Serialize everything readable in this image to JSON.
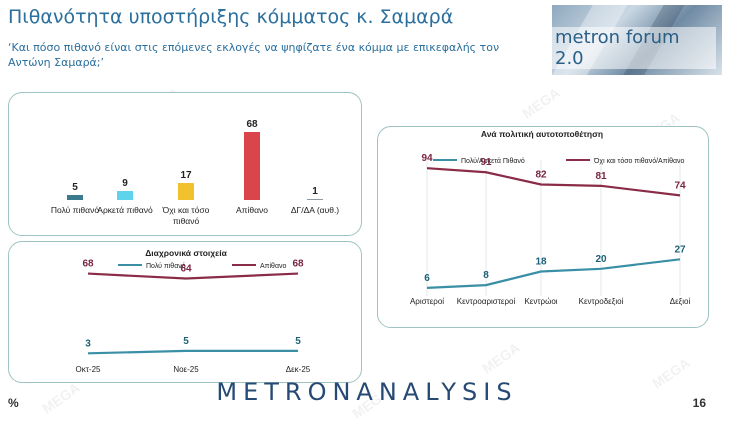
{
  "header": {
    "title": "Πιθανότητα υποστήριξης κόμματος κ. Σαμαρά",
    "subtitle": "‘Και πόσο πιθανό είναι στις επόμενες εκλογές να ψηφίζατε ένα κόμμα με επικεφαλής τον Αντώνη Σαμαρά;’",
    "logo_text": "metron forum 2.0"
  },
  "watermark_text": "MEGA",
  "footer": {
    "brand": "METRONANALYSIS",
    "percent_sign": "%",
    "page_number": "16"
  },
  "colors": {
    "dark_teal": "#3a7a8c",
    "light_cyan": "#5fd3ec",
    "yellow": "#f2c12e",
    "red": "#d9454b",
    "grey": "#8a9aa0",
    "wine": "#8a2b47"
  },
  "chart_data": [
    {
      "type": "bar",
      "categories": [
        "Πολύ πιθανό",
        "Αρκετά πιθανό",
        "Όχι και τόσο πιθανό",
        "Απίθανο",
        "ΔΓ/ΔΑ (αυθ.)"
      ],
      "values": [
        5,
        9,
        17,
        68,
        1
      ],
      "colors": [
        "#3a7a8c",
        "#5fd3ec",
        "#f2c12e",
        "#d9454b",
        "#8a9aa0"
      ],
      "ylim": [
        0,
        70
      ]
    },
    {
      "type": "line",
      "title": "Διαχρονικά στοιχεία",
      "x": [
        "Οκτ-25",
        "Νοε-25",
        "Δεκ-25"
      ],
      "series": [
        {
          "name": "Πολύ πιθανό",
          "values": [
            3,
            5,
            5
          ],
          "color": "#3a8fa6"
        },
        {
          "name": "Απίθανο",
          "values": [
            68,
            64,
            68
          ],
          "color": "#8a2b47"
        }
      ],
      "ylim": [
        0,
        75
      ],
      "legend": "top"
    },
    {
      "type": "line",
      "title": "Ανά πολιτική αυτοτοποθέτηση",
      "x": [
        "Αριστεροί",
        "Κεντροαριστεροί",
        "Κεντρώοι",
        "Κεντροδεξιοί",
        "Δεξιοί"
      ],
      "series": [
        {
          "name": "Πολύ/Αρκετά Πιθανό",
          "values": [
            6,
            8,
            18,
            20,
            27
          ],
          "color": "#3a8fa6"
        },
        {
          "name": "Όχι και τόσο πιθανό/Απίθανο",
          "values": [
            94,
            91,
            82,
            81,
            74
          ],
          "color": "#8a2b47"
        }
      ],
      "ylim": [
        0,
        100
      ],
      "legend": "top"
    }
  ]
}
